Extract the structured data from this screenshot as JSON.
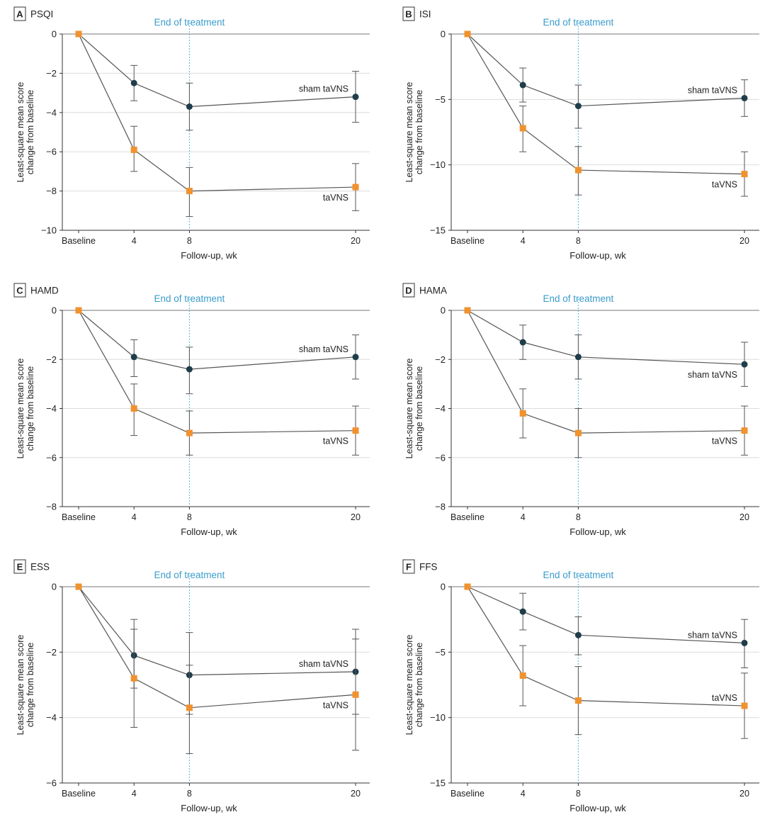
{
  "figure": {
    "x_tick_labels": [
      "Baseline",
      "4",
      "8",
      "20"
    ],
    "x_values": [
      0,
      4,
      8,
      20
    ],
    "end_of_treatment_week": 8,
    "end_of_treatment_label": "End of treatment",
    "colors": {
      "sham": "#1f3d4a",
      "tavns": "#f0922e",
      "line": "#555555",
      "guide": "#58b3d8",
      "guide_text": "#3a9ccc",
      "grid": "#dcdcdc",
      "axis": "#333333",
      "text": "#222222"
    }
  },
  "chart_data": [
    {
      "type": "line",
      "panel_letter": "A",
      "title": "PSQI",
      "xlabel": "Follow-up, wk",
      "ylabel": [
        "Least-square mean score",
        "change from baseline"
      ],
      "ylim": [
        -10,
        0
      ],
      "yticks": [
        0,
        -2,
        -4,
        -6,
        -8,
        -10
      ],
      "categories": [
        "Baseline",
        "4",
        "8",
        "20"
      ],
      "series": [
        {
          "name": "sham taVNS",
          "values": [
            0,
            -2.5,
            -3.7,
            -3.2
          ],
          "err_low": [
            0,
            -3.4,
            -4.9,
            -4.5
          ],
          "err_high": [
            0,
            -1.6,
            -2.5,
            -1.9
          ]
        },
        {
          "name": "taVNS",
          "values": [
            0,
            -5.9,
            -8.0,
            -7.8
          ],
          "err_low": [
            0,
            -7.0,
            -9.3,
            -9.0
          ],
          "err_high": [
            0,
            -4.7,
            -6.8,
            -6.6
          ]
        }
      ],
      "label_pos": {
        "sham taVNS": "above",
        "taVNS": "below"
      }
    },
    {
      "type": "line",
      "panel_letter": "B",
      "title": "ISI",
      "xlabel": "Follow-up, wk",
      "ylabel": [
        "Least-square mean score",
        "change from baseline"
      ],
      "ylim": [
        -15,
        0
      ],
      "yticks": [
        0,
        -5,
        -10,
        -15
      ],
      "categories": [
        "Baseline",
        "4",
        "8",
        "20"
      ],
      "series": [
        {
          "name": "sham taVNS",
          "values": [
            0,
            -3.9,
            -5.5,
            -4.9
          ],
          "err_low": [
            0,
            -5.2,
            -7.2,
            -6.3
          ],
          "err_high": [
            0,
            -2.6,
            -3.9,
            -3.5
          ]
        },
        {
          "name": "taVNS",
          "values": [
            0,
            -7.2,
            -10.4,
            -10.7
          ],
          "err_low": [
            0,
            -9.0,
            -12.3,
            -12.4
          ],
          "err_high": [
            0,
            -5.5,
            -8.6,
            -9.0
          ]
        }
      ],
      "label_pos": {
        "sham taVNS": "above",
        "taVNS": "below"
      }
    },
    {
      "type": "line",
      "panel_letter": "C",
      "title": "HAMD",
      "xlabel": "Follow-up, wk",
      "ylabel": [
        "Least-square mean score",
        "change from baseline"
      ],
      "ylim": [
        -8,
        0
      ],
      "yticks": [
        0,
        -2,
        -4,
        -6,
        -8
      ],
      "categories": [
        "Baseline",
        "4",
        "8",
        "20"
      ],
      "series": [
        {
          "name": "sham taVNS",
          "values": [
            0,
            -1.9,
            -2.4,
            -1.9
          ],
          "err_low": [
            0,
            -2.7,
            -3.4,
            -2.8
          ],
          "err_high": [
            0,
            -1.2,
            -1.5,
            -1.0
          ]
        },
        {
          "name": "taVNS",
          "values": [
            0,
            -4.0,
            -5.0,
            -4.9
          ],
          "err_low": [
            0,
            -5.1,
            -5.9,
            -5.9
          ],
          "err_high": [
            0,
            -3.0,
            -4.1,
            -3.9
          ]
        }
      ],
      "label_pos": {
        "sham taVNS": "above",
        "taVNS": "below"
      }
    },
    {
      "type": "line",
      "panel_letter": "D",
      "title": "HAMA",
      "xlabel": "Follow-up, wk",
      "ylabel": [
        "Least-square mean score",
        "change from baseline"
      ],
      "ylim": [
        -8,
        0
      ],
      "yticks": [
        0,
        -2,
        -4,
        -6,
        -8
      ],
      "categories": [
        "Baseline",
        "4",
        "8",
        "20"
      ],
      "series": [
        {
          "name": "sham taVNS",
          "values": [
            0,
            -1.3,
            -1.9,
            -2.2
          ],
          "err_low": [
            0,
            -2.0,
            -2.8,
            -3.1
          ],
          "err_high": [
            0,
            -0.6,
            -1.0,
            -1.3
          ]
        },
        {
          "name": "taVNS",
          "values": [
            0,
            -4.2,
            -5.0,
            -4.9
          ],
          "err_low": [
            0,
            -5.2,
            -6.0,
            -5.9
          ],
          "err_high": [
            0,
            -3.2,
            -4.0,
            -3.9
          ]
        }
      ],
      "label_pos": {
        "sham taVNS": "below",
        "taVNS": "below"
      }
    },
    {
      "type": "line",
      "panel_letter": "E",
      "title": "ESS",
      "xlabel": "Follow-up, wk",
      "ylabel": [
        "Least-square mean score",
        "change from baseline"
      ],
      "ylim": [
        -6,
        0
      ],
      "yticks": [
        0,
        -2,
        -4,
        -6
      ],
      "categories": [
        "Baseline",
        "4",
        "8",
        "20"
      ],
      "series": [
        {
          "name": "sham taVNS",
          "values": [
            0,
            -2.1,
            -2.7,
            -2.6
          ],
          "err_low": [
            0,
            -3.1,
            -3.9,
            -3.9
          ],
          "err_high": [
            0,
            -1.0,
            -1.4,
            -1.3
          ]
        },
        {
          "name": "taVNS",
          "values": [
            0,
            -2.8,
            -3.7,
            -3.3
          ],
          "err_low": [
            0,
            -4.3,
            -5.1,
            -5.0
          ],
          "err_high": [
            0,
            -1.3,
            -2.4,
            -1.6
          ]
        }
      ],
      "label_pos": {
        "sham taVNS": "above",
        "taVNS": "below"
      }
    },
    {
      "type": "line",
      "panel_letter": "F",
      "title": "FFS",
      "xlabel": "Follow-up, wk",
      "ylabel": [
        "Least-square mean score",
        "change from baseline"
      ],
      "ylim": [
        -15,
        0
      ],
      "yticks": [
        0,
        -5,
        -10,
        -15
      ],
      "categories": [
        "Baseline",
        "4",
        "8",
        "20"
      ],
      "series": [
        {
          "name": "sham taVNS",
          "values": [
            0,
            -1.9,
            -3.7,
            -4.3
          ],
          "err_low": [
            0,
            -3.3,
            -5.2,
            -6.2
          ],
          "err_high": [
            0,
            -0.5,
            -2.3,
            -2.5
          ]
        },
        {
          "name": "taVNS",
          "values": [
            0,
            -6.8,
            -8.7,
            -9.1
          ],
          "err_low": [
            0,
            -9.1,
            -11.3,
            -11.6
          ],
          "err_high": [
            0,
            -4.5,
            -6.1,
            -6.6
          ]
        }
      ],
      "label_pos": {
        "sham taVNS": "above",
        "taVNS": "above"
      }
    }
  ]
}
